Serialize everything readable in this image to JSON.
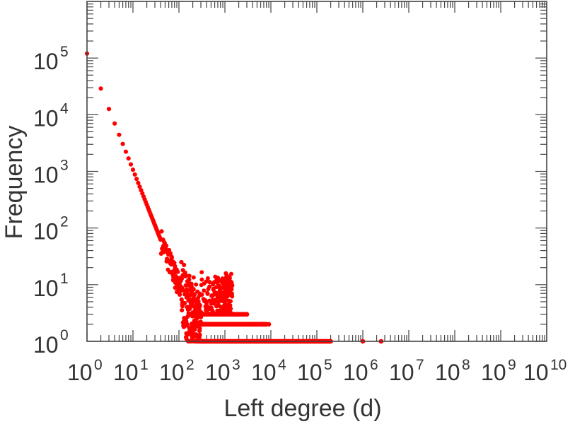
{
  "chart_data": {
    "type": "scatter",
    "title": "",
    "xlabel": "Left degree (d)",
    "ylabel": "Frequency",
    "xscale": "log",
    "yscale": "log",
    "xlim": [
      1,
      10000000000
    ],
    "ylim": [
      1,
      1000000
    ],
    "grid": false,
    "legend": "none",
    "marker_color": "#ff0000",
    "x_ticks": [
      {
        "base": "10",
        "exp": "0"
      },
      {
        "base": "10",
        "exp": "1"
      },
      {
        "base": "10",
        "exp": "2"
      },
      {
        "base": "10",
        "exp": "3"
      },
      {
        "base": "10",
        "exp": "4"
      },
      {
        "base": "10",
        "exp": "5"
      },
      {
        "base": "10",
        "exp": "6"
      },
      {
        "base": "10",
        "exp": "7"
      },
      {
        "base": "10",
        "exp": "8"
      },
      {
        "base": "10",
        "exp": "9"
      },
      {
        "base": "10",
        "exp": "10"
      }
    ],
    "y_ticks": [
      {
        "base": "10",
        "exp": "0"
      },
      {
        "base": "10",
        "exp": "1"
      },
      {
        "base": "10",
        "exp": "2"
      },
      {
        "base": "10",
        "exp": "3"
      },
      {
        "base": "10",
        "exp": "4"
      },
      {
        "base": "10",
        "exp": "5"
      }
    ],
    "trend": {
      "description": "power-law decay",
      "start": {
        "x": 1,
        "y": 120000
      },
      "slope": -2.05,
      "x_end": 300
    },
    "plateaus": [
      {
        "y": 3,
        "x_from": 300,
        "x_to": 3000
      },
      {
        "y": 2,
        "x_from": 300,
        "x_to": 8000
      },
      {
        "y": 1,
        "x_from": 300,
        "x_to": 200000
      }
    ],
    "outliers": [
      {
        "x": 4500,
        "y": 2
      },
      {
        "x": 9000,
        "y": 2
      },
      {
        "x": 1000000,
        "y": 1
      },
      {
        "x": 2500000,
        "y": 1
      }
    ]
  }
}
